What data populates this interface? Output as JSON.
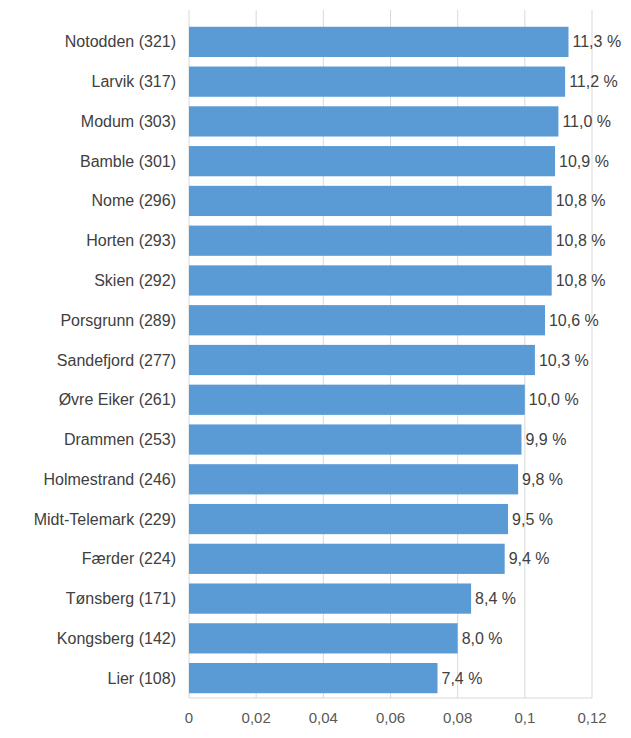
{
  "chart_data": {
    "type": "bar",
    "orientation": "horizontal",
    "categories": [
      "Notodden (321)",
      "Larvik (317)",
      "Modum (303)",
      "Bamble (301)",
      "Nome (296)",
      "Horten (293)",
      "Skien (292)",
      "Porsgrunn (289)",
      "Sandefjord (277)",
      "Øvre Eiker (261)",
      "Drammen (253)",
      "Holmestrand (246)",
      "Midt-Telemark (229)",
      "Færder (224)",
      "Tønsberg (171)",
      "Kongsberg (142)",
      "Lier (108)"
    ],
    "values": [
      0.113,
      0.112,
      0.11,
      0.109,
      0.108,
      0.108,
      0.108,
      0.106,
      0.103,
      0.1,
      0.099,
      0.098,
      0.095,
      0.094,
      0.084,
      0.08,
      0.074
    ],
    "value_labels": [
      "11,3 %",
      "11,2 %",
      "11,0 %",
      "10,9 %",
      "10,8 %",
      "10,8 %",
      "10,8 %",
      "10,6 %",
      "10,3 %",
      "10,0 %",
      "9,9 %",
      "9,8 %",
      "9,5 %",
      "9,4 %",
      "8,4 %",
      "8,0 %",
      "7,4 %"
    ],
    "data_labels": true,
    "color": "#5b9bd5",
    "xlim": [
      0,
      0.12
    ],
    "xticks": [
      0,
      {
        "value": 0.02,
        "label": "0,02"
      },
      {
        "value": 0.04,
        "label": "0,04"
      },
      {
        "value": 0.06,
        "label": "0,06"
      },
      {
        "value": 0.08,
        "label": "0,08"
      },
      {
        "value": 0.1,
        "label": "0,1"
      },
      {
        "value": 0.12,
        "label": "0,12"
      }
    ],
    "grid": true
  }
}
